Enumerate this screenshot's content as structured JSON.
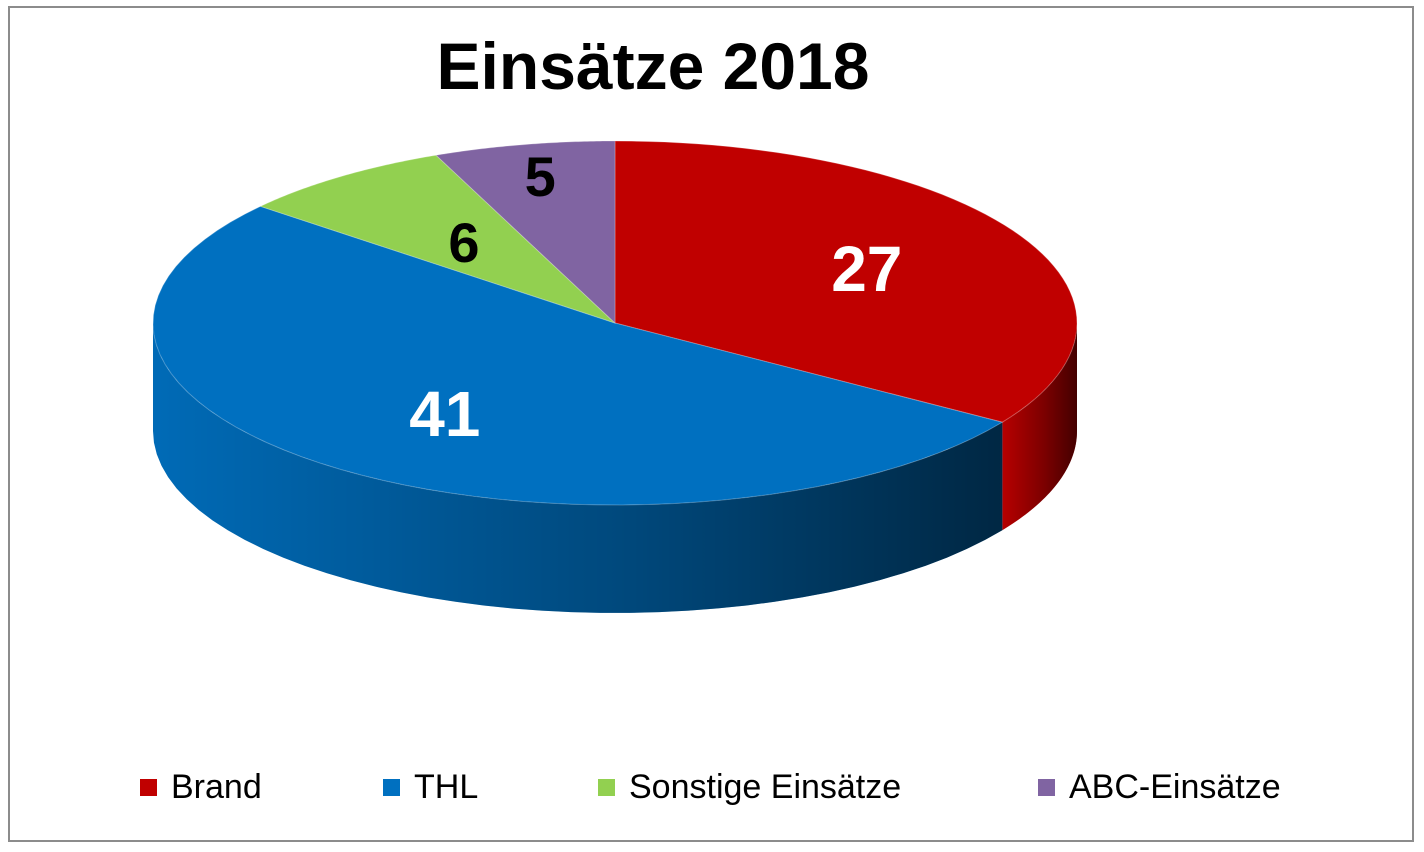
{
  "chart_data": {
    "type": "pie",
    "title": "Einsätze 2018",
    "categories": [
      "Brand",
      "THL",
      "Sonstige Einsätze",
      "ABC-Einsätze"
    ],
    "values": [
      27,
      41,
      6,
      5
    ],
    "colors": [
      "#c00000",
      "#0070c0",
      "#92d050",
      "#8064a2"
    ],
    "label_colors": [
      "#ffffff",
      "#ffffff",
      "#000000",
      "#000000"
    ],
    "style": "3d",
    "start_angle_deg": 0,
    "direction": "clockwise",
    "legend_position": "bottom"
  }
}
